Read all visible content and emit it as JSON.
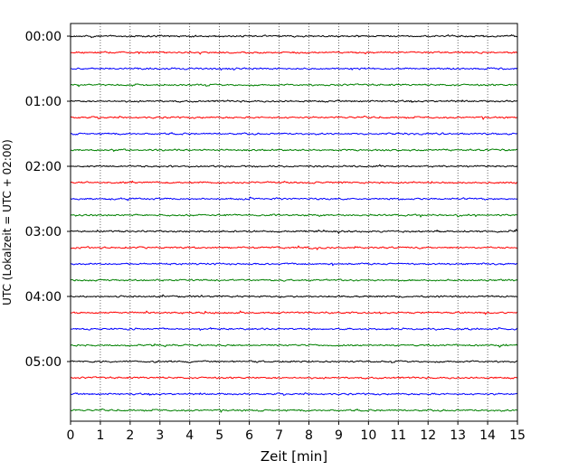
{
  "chart_data": {
    "type": "line",
    "title": "",
    "xlabel": "Zeit  [min]",
    "ylabel": "UTC (Lokalzeit = UTC + 02:00)",
    "xlim": [
      0,
      15
    ],
    "x_ticks": [
      0,
      1,
      2,
      3,
      4,
      5,
      6,
      7,
      8,
      9,
      10,
      11,
      12,
      13,
      14,
      15
    ],
    "y_tick_labels": [
      "00:00",
      "01:00",
      "02:00",
      "03:00",
      "04:00",
      "05:00"
    ],
    "trace_interval_min": 15,
    "trace_count": 24,
    "trace_colors": [
      "#000000",
      "#ff0000",
      "#0000ff",
      "#008000"
    ],
    "grid_x": true,
    "grid_style": "dotted"
  }
}
